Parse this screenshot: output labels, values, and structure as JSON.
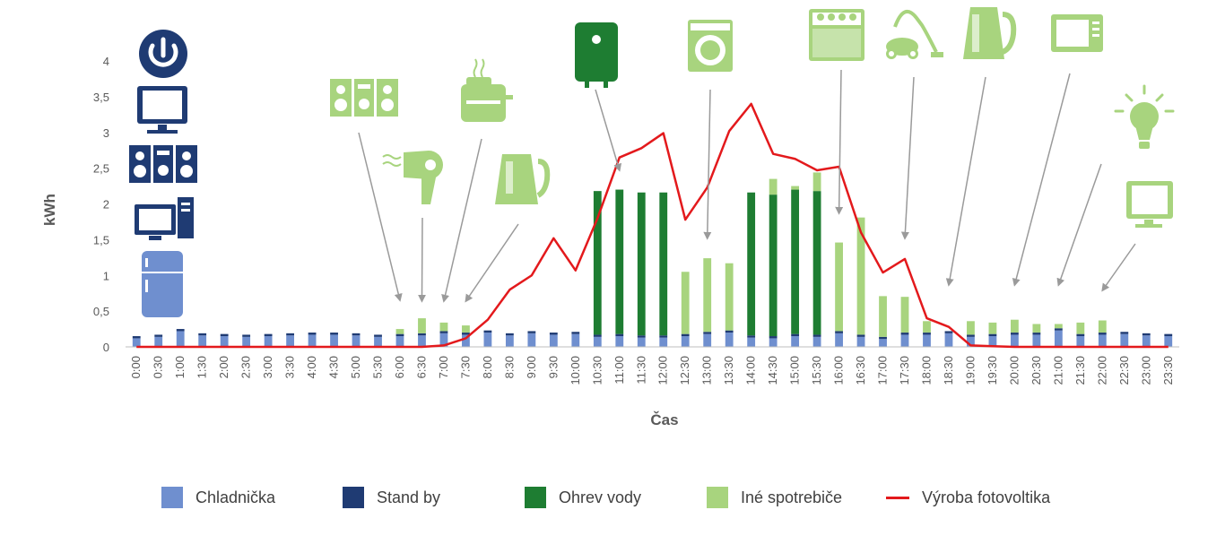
{
  "chart_data": {
    "type": "bar",
    "stacked": true,
    "xlabel": "Čas",
    "ylabel": "kWh",
    "ylim": [
      0,
      4
    ],
    "yticks": [
      "0",
      "0,5",
      "1",
      "1,5",
      "2",
      "2,5",
      "3",
      "3,5",
      "4"
    ],
    "grid": false,
    "legend_position": "bottom",
    "categories": [
      "0:00",
      "0:30",
      "1:00",
      "1:30",
      "2:00",
      "2:30",
      "3:00",
      "3:30",
      "4:00",
      "4:30",
      "5:00",
      "5:30",
      "6:00",
      "6:30",
      "7:00",
      "7:30",
      "8:00",
      "8:30",
      "9:00",
      "9:30",
      "10:00",
      "10:30",
      "11:00",
      "11:30",
      "12:00",
      "12:30",
      "13:00",
      "13:30",
      "14:00",
      "14:30",
      "15:00",
      "15:30",
      "16:00",
      "16:30",
      "17:00",
      "17:30",
      "18:00",
      "18:30",
      "19:00",
      "19:30",
      "20:00",
      "20:30",
      "21:00",
      "21:30",
      "22:00",
      "22:30",
      "23:00",
      "23:30"
    ],
    "series": [
      {
        "name": "Chladnička",
        "kind": "bar",
        "color": "#6f8fcf",
        "values": [
          0.12,
          0.14,
          0.22,
          0.16,
          0.15,
          0.14,
          0.15,
          0.16,
          0.17,
          0.17,
          0.16,
          0.14,
          0.15,
          0.16,
          0.19,
          0.17,
          0.2,
          0.16,
          0.19,
          0.17,
          0.18,
          0.14,
          0.15,
          0.13,
          0.13,
          0.15,
          0.18,
          0.2,
          0.13,
          0.12,
          0.15,
          0.14,
          0.19,
          0.14,
          0.11,
          0.17,
          0.17,
          0.19,
          0.14,
          0.15,
          0.17,
          0.17,
          0.23,
          0.15,
          0.17,
          0.18,
          0.16,
          0.15
        ]
      },
      {
        "name": "Stand by",
        "kind": "bar",
        "color": "#1f3b73",
        "values": [
          0.03,
          0.03,
          0.03,
          0.03,
          0.03,
          0.03,
          0.03,
          0.03,
          0.03,
          0.03,
          0.03,
          0.03,
          0.03,
          0.03,
          0.03,
          0.03,
          0.03,
          0.03,
          0.03,
          0.03,
          0.03,
          0.03,
          0.03,
          0.03,
          0.03,
          0.03,
          0.03,
          0.03,
          0.03,
          0.03,
          0.03,
          0.03,
          0.03,
          0.03,
          0.03,
          0.03,
          0.03,
          0.03,
          0.03,
          0.03,
          0.03,
          0.03,
          0.03,
          0.03,
          0.03,
          0.03,
          0.03,
          0.03
        ]
      },
      {
        "name": "Ohrev vody",
        "kind": "bar",
        "color": "#1e7d32",
        "values": [
          0,
          0,
          0,
          0,
          0,
          0,
          0,
          0,
          0,
          0,
          0,
          0,
          0,
          0,
          0,
          0,
          0,
          0,
          0,
          0,
          0,
          2.01,
          2.02,
          2.0,
          2.0,
          0,
          0,
          0,
          2.0,
          1.98,
          2.02,
          2.01,
          0,
          0,
          0,
          0,
          0,
          0,
          0,
          0,
          0,
          0,
          0,
          0,
          0,
          0,
          0,
          0
        ]
      },
      {
        "name": "Iné spotrebiče",
        "kind": "bar",
        "color": "#a8d47e",
        "values": [
          0,
          0,
          0,
          0,
          0,
          0,
          0,
          0,
          0,
          0,
          0,
          0,
          0.07,
          0.21,
          0.12,
          0.1,
          0,
          0,
          0,
          0,
          0,
          0,
          0,
          0,
          0,
          0.87,
          1.03,
          0.94,
          0,
          0.22,
          0.05,
          0.26,
          1.24,
          1.64,
          0.57,
          0.5,
          0.16,
          0,
          0.19,
          0.16,
          0.18,
          0.12,
          0.06,
          0.16,
          0.17,
          0,
          0,
          0
        ]
      },
      {
        "name": "Výroba fotovoltika",
        "kind": "line",
        "color": "#e3191c",
        "values": [
          0,
          0,
          0,
          0,
          0,
          0,
          0,
          0,
          0,
          0,
          0,
          0,
          0,
          0,
          0.02,
          0.12,
          0.38,
          0.8,
          1.0,
          1.52,
          1.07,
          1.8,
          2.65,
          2.78,
          2.99,
          1.78,
          2.23,
          3.02,
          3.4,
          2.7,
          2.63,
          2.47,
          2.52,
          1.6,
          1.04,
          1.23,
          0.4,
          0.28,
          0.02,
          0.01,
          0,
          0,
          0,
          0,
          0,
          0,
          0,
          0
        ]
      }
    ]
  },
  "icons": {
    "base_loads": [
      {
        "name": "power-icon",
        "color": "#1f3b73"
      },
      {
        "name": "tv-icon",
        "color": "#1f3b73"
      },
      {
        "name": "stereo-icon",
        "color": "#1f3b73"
      },
      {
        "name": "computer-icon",
        "color": "#1f3b73"
      },
      {
        "name": "fridge-icon",
        "color": "#6f8fcf"
      }
    ],
    "appliances": [
      {
        "name": "stereo-icon",
        "color": "#a8d47e",
        "points_to_index": 12
      },
      {
        "name": "hairdryer-icon",
        "color": "#a8d47e",
        "points_to_index": 13
      },
      {
        "name": "toaster-icon",
        "color": "#a8d47e",
        "points_to_index": 14
      },
      {
        "name": "kettle-icon",
        "color": "#a8d47e",
        "points_to_index": 15
      },
      {
        "name": "water-heater-icon",
        "color": "#1e7d32",
        "points_to_index": 22
      },
      {
        "name": "washing-machine-icon",
        "color": "#a8d47e",
        "points_to_index": 26
      },
      {
        "name": "dishwasher-icon",
        "color": "#a8d47e",
        "points_to_index": 32
      },
      {
        "name": "vacuum-icon",
        "color": "#a8d47e",
        "points_to_index": 35
      },
      {
        "name": "kettle-icon",
        "color": "#a8d47e",
        "points_to_index": 37
      },
      {
        "name": "microwave-icon",
        "color": "#a8d47e",
        "points_to_index": 40
      },
      {
        "name": "light-bulb-icon",
        "color": "#a8d47e",
        "points_to_index": 42
      },
      {
        "name": "tv-icon",
        "color": "#a8d47e",
        "points_to_index": 44
      }
    ]
  }
}
